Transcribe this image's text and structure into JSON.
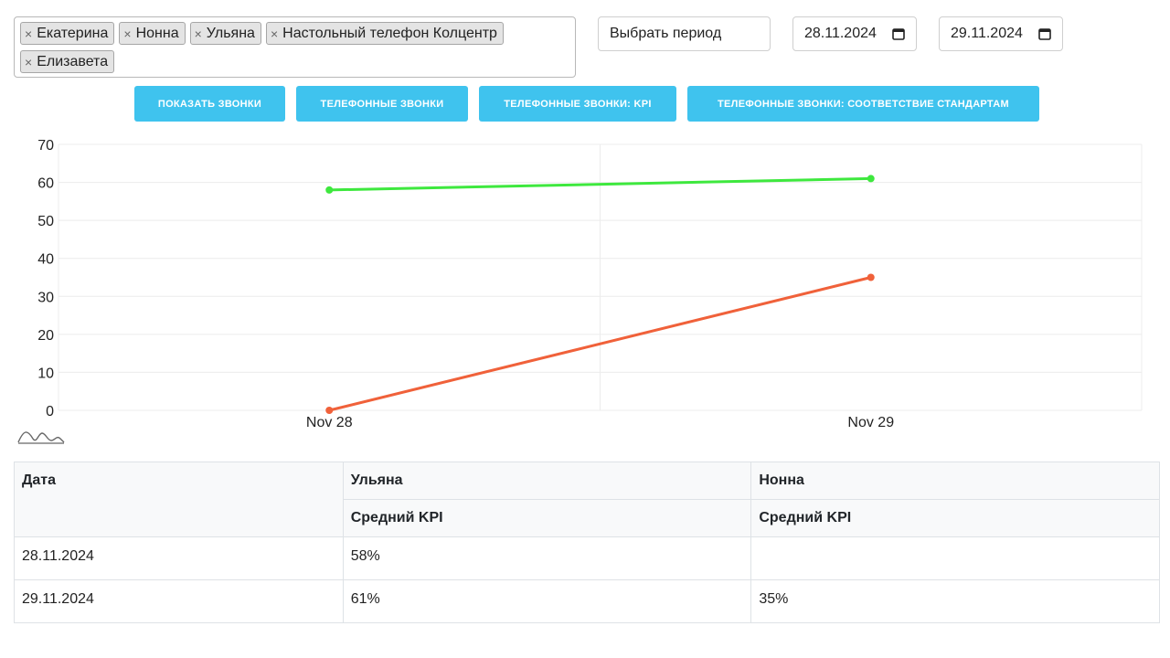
{
  "employees_filter": {
    "tags": [
      "Екатерина",
      "Нонна",
      "Ульяна",
      "Настольный телефон Колцентр",
      "Елизавета"
    ],
    "remove_glyph": "×"
  },
  "period": {
    "select_label": "Выбрать период",
    "date_from": "28.11.2024",
    "date_to": "29.11.2024"
  },
  "buttons": {
    "show_calls": "ПОКАЗАТЬ ЗВОНКИ",
    "phone_calls": "ТЕЛЕФОННЫЕ ЗВОНКИ",
    "phone_calls_kpi": "ТЕЛЕФОННЫЕ ЗВОНКИ: KPI",
    "phone_calls_standards": "ТЕЛЕФОННЫЕ ЗВОНКИ: СООТВЕТСТВИЕ СТАНДАРТАМ"
  },
  "icons": {
    "calendar": "calendar-icon",
    "trend": "trend-chart-icon"
  },
  "chart_data": {
    "type": "line",
    "x": [
      "Nov 28",
      "Nov 29"
    ],
    "ylim": [
      0,
      70
    ],
    "yticks": [
      0,
      10,
      20,
      30,
      40,
      50,
      60,
      70
    ],
    "grid": true,
    "series": [
      {
        "color": "#3ee83e",
        "values": [
          58,
          61
        ]
      },
      {
        "color": "#f0613a",
        "values": [
          0,
          35
        ]
      }
    ]
  },
  "table": {
    "headers": {
      "date": "Дата",
      "employees": [
        "Ульяна",
        "Нонна"
      ],
      "metric": "Средний KPI"
    },
    "rows": [
      {
        "date": "28.11.2024",
        "values": [
          "58%",
          ""
        ]
      },
      {
        "date": "29.11.2024",
        "values": [
          "61%",
          "35%"
        ]
      }
    ]
  }
}
